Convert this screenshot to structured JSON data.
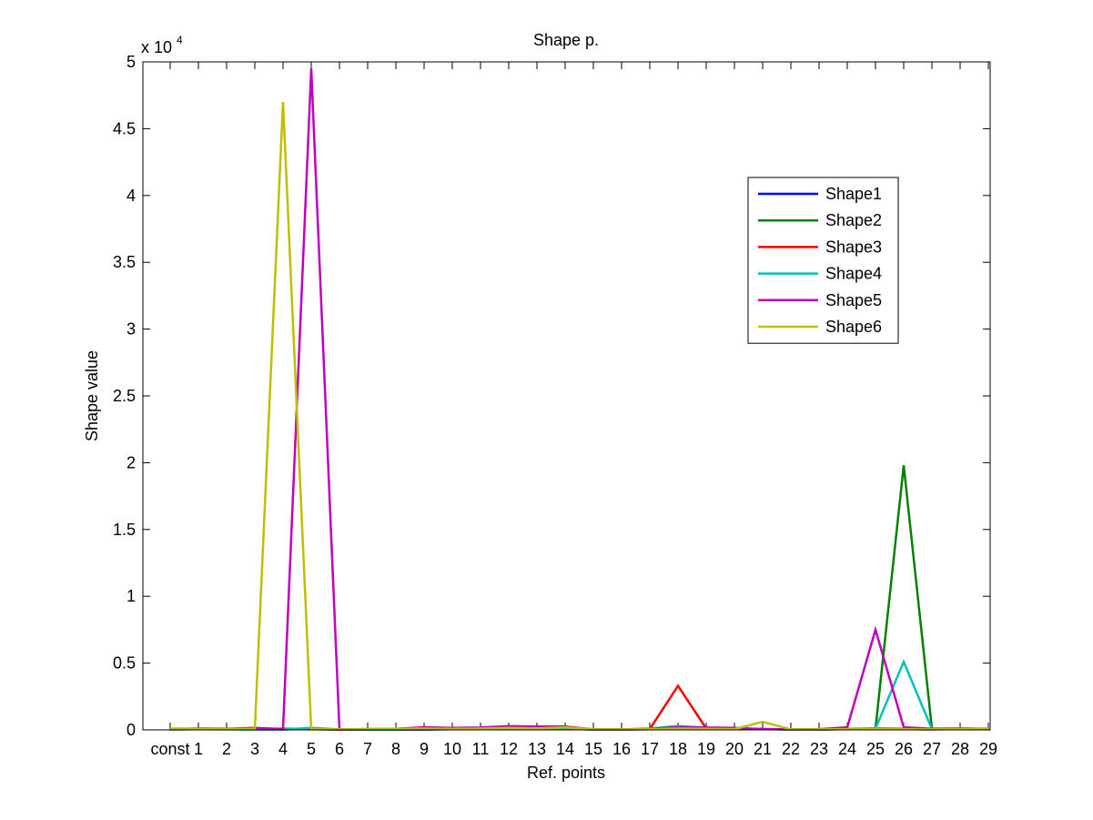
{
  "chart_data": {
    "type": "line",
    "title": "Shape p.",
    "xlabel": "Ref. points",
    "ylabel": "Shape value",
    "y_exponent_label": "x 10",
    "y_exponent_power": "4",
    "categories": [
      "const",
      "1",
      "2",
      "3",
      "4",
      "5",
      "6",
      "7",
      "8",
      "9",
      "10",
      "11",
      "12",
      "13",
      "14",
      "15",
      "16",
      "17",
      "18",
      "19",
      "20",
      "21",
      "22",
      "23",
      "24",
      "25",
      "26",
      "27",
      "28",
      "29"
    ],
    "ylim": [
      0,
      50000
    ],
    "yticks": [
      0,
      5000,
      10000,
      15000,
      20000,
      25000,
      30000,
      35000,
      40000,
      45000,
      50000
    ],
    "ytick_labels": [
      "0",
      "0.5",
      "1",
      "1.5",
      "2",
      "2.5",
      "3",
      "3.5",
      "4",
      "4.5",
      "5"
    ],
    "grid": false,
    "legend_position": "top-right",
    "series": [
      {
        "name": "Shape1",
        "color": "#0000ff",
        "values": [
          50,
          80,
          60,
          80,
          40,
          60,
          30,
          30,
          30,
          30,
          50,
          80,
          120,
          100,
          80,
          30,
          30,
          50,
          100,
          80,
          60,
          60,
          40,
          30,
          60,
          80,
          60,
          40,
          60,
          80
        ]
      },
      {
        "name": "Shape2",
        "color": "#008000",
        "values": [
          60,
          100,
          80,
          100,
          60,
          80,
          40,
          60,
          40,
          120,
          80,
          100,
          150,
          180,
          150,
          40,
          40,
          60,
          120,
          100,
          80,
          60,
          40,
          60,
          80,
          100,
          19800,
          100,
          80,
          60
        ]
      },
      {
        "name": "Shape3",
        "color": "#ff0000",
        "values": [
          40,
          80,
          60,
          100,
          80,
          60,
          30,
          40,
          60,
          150,
          100,
          120,
          200,
          180,
          200,
          40,
          40,
          60,
          3300,
          100,
          80,
          60,
          40,
          40,
          60,
          120,
          80,
          60,
          120,
          60
        ]
      },
      {
        "name": "Shape4",
        "color": "#00bfbf",
        "values": [
          30,
          50,
          40,
          30,
          30,
          150,
          40,
          30,
          30,
          60,
          50,
          60,
          80,
          100,
          120,
          30,
          30,
          100,
          300,
          150,
          60,
          60,
          30,
          30,
          80,
          100,
          5100,
          60,
          50,
          40
        ]
      },
      {
        "name": "Shape5",
        "color": "#bf00bf",
        "values": [
          60,
          100,
          80,
          150,
          60,
          49500,
          40,
          60,
          80,
          200,
          150,
          180,
          280,
          250,
          250,
          40,
          40,
          80,
          200,
          180,
          150,
          60,
          40,
          50,
          200,
          7500,
          200,
          80,
          100,
          80
        ]
      },
      {
        "name": "Shape6",
        "color": "#bfbf00",
        "values": [
          50,
          80,
          60,
          80,
          47000,
          40,
          40,
          60,
          80,
          100,
          80,
          100,
          150,
          120,
          200,
          40,
          40,
          60,
          100,
          80,
          60,
          600,
          40,
          40,
          60,
          80,
          60,
          40,
          80,
          60
        ]
      }
    ]
  }
}
